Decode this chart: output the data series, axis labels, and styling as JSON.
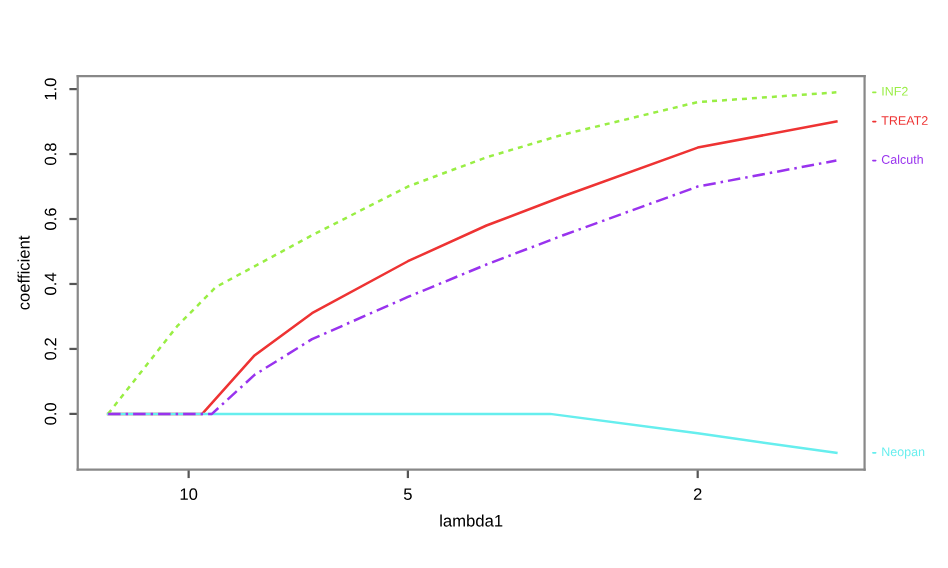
{
  "chart_data": {
    "type": "line",
    "xlabel": "lambda1",
    "ylabel": "coefficient",
    "log": "x",
    "xlim": [
      14.2,
      1.18
    ],
    "xticks": [
      10,
      5,
      2
    ],
    "ylim": [
      -0.172,
      1.04
    ],
    "yticks": [
      {
        "value": 0,
        "label": "0.0"
      },
      {
        "value": 0.2,
        "label": "0.2"
      },
      {
        "value": 0.4,
        "label": "0.4"
      },
      {
        "value": 0.6,
        "label": "0.6"
      },
      {
        "value": 0.8,
        "label": "0.8"
      },
      {
        "value": 1,
        "label": "1.0"
      }
    ],
    "grid": false,
    "legend": "right",
    "series": [
      {
        "name": "INF2",
        "color": "#99ee44",
        "line_style": "dotted",
        "x": [
          12.9,
          10.37,
          9.18,
          6.77,
          5,
          3.9,
          3.06,
          2,
          1.29
        ],
        "values": [
          0,
          0.27,
          0.39,
          0.55,
          0.7,
          0.79,
          0.86,
          0.96,
          0.99
        ]
      },
      {
        "name": "TREAT2",
        "color": "#ee3333",
        "line_style": "solid",
        "x": [
          12.9,
          9.58,
          8.12,
          6.77,
          5,
          3.9,
          3.06,
          2,
          1.29
        ],
        "values": [
          0,
          0,
          0.18,
          0.31,
          0.47,
          0.58,
          0.67,
          0.82,
          0.9
        ]
      },
      {
        "name": "Calcuth",
        "color": "#9933ee",
        "line_style": "dashed",
        "x": [
          12.9,
          9.29,
          8.12,
          6.77,
          5,
          3.9,
          3.06,
          2,
          1.29
        ],
        "values": [
          0,
          0,
          0.12,
          0.23,
          0.36,
          0.46,
          0.55,
          0.7,
          0.78
        ]
      },
      {
        "name": "Neopan",
        "color": "#66eeee",
        "line_style": "solid",
        "x": [
          12.9,
          3.19,
          2,
          1.29
        ],
        "values": [
          0,
          0,
          -0.06,
          -0.12
        ]
      }
    ]
  }
}
